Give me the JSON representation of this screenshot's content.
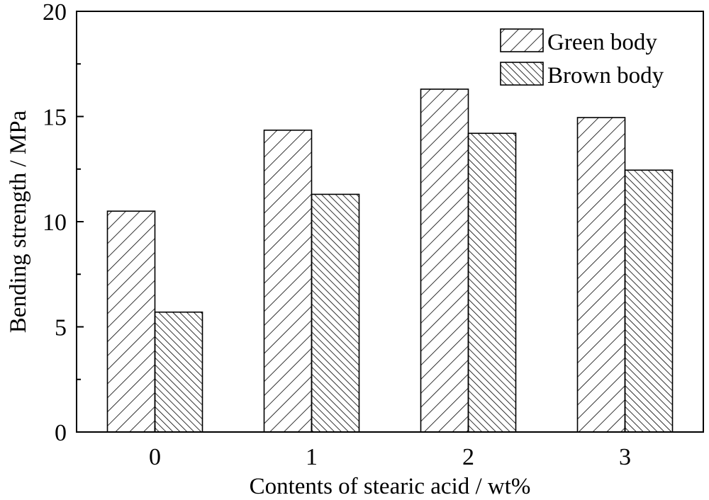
{
  "chart_data": {
    "type": "bar",
    "categories": [
      "0",
      "1",
      "2",
      "3"
    ],
    "series": [
      {
        "name": "Green body",
        "values": [
          10.5,
          14.35,
          16.3,
          14.95
        ],
        "pattern": "hatch-forward"
      },
      {
        "name": "Brown body",
        "values": [
          5.7,
          11.3,
          14.2,
          12.45
        ],
        "pattern": "hatch-back-dense"
      }
    ],
    "title": "",
    "xlabel": "Contents of stearic acid / wt%",
    "ylabel": "Bending strength / MPa",
    "ylim": [
      0,
      20
    ],
    "yticks": [
      "0",
      "5",
      "10",
      "15",
      "20"
    ],
    "grid": false,
    "legend_position": "top-right",
    "colors": {
      "stroke": "#000000",
      "fill": "#ffffff"
    }
  }
}
